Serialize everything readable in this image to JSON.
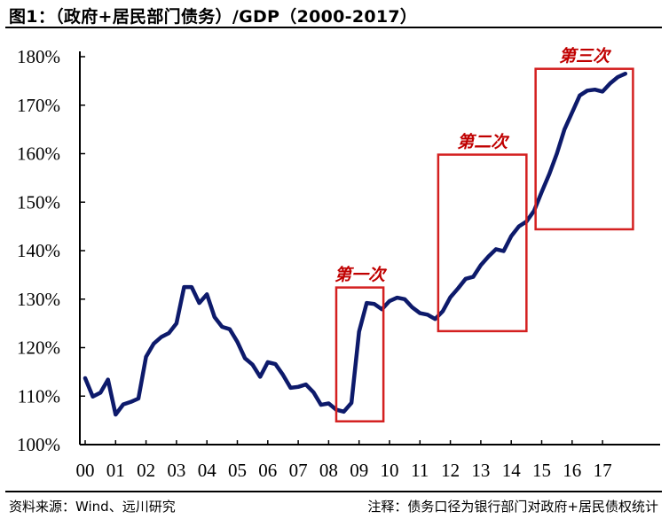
{
  "header": {
    "title": "图1：（政府+居民部门债务）/GDP（2000-2017）"
  },
  "footer": {
    "source": "资料来源：Wind、远川研究",
    "note": "注释：债务口径为银行部门对政府+居民债权统计"
  },
  "colors": {
    "line": "#0d1a6b",
    "highlight_box": "#d42020",
    "annotation_text": "#c00000"
  },
  "chart_data": {
    "type": "line",
    "title": "（政府+居民部门债务）/GDP（2000-2017）",
    "xlabel": "",
    "ylabel": "",
    "ylim": [
      100,
      180
    ],
    "xlim": [
      0,
      17.75
    ],
    "grid": false,
    "y_ticks": [
      100,
      110,
      120,
      130,
      140,
      150,
      160,
      170,
      180
    ],
    "y_tick_labels": [
      "100%",
      "110%",
      "120%",
      "130%",
      "140%",
      "150%",
      "160%",
      "170%",
      "180%"
    ],
    "x_ticks": [
      0,
      1,
      2,
      3,
      4,
      5,
      6,
      7,
      8,
      9,
      10,
      11,
      12,
      13,
      14,
      15,
      16,
      17
    ],
    "x_tick_labels": [
      "00",
      "01",
      "02",
      "03",
      "04",
      "05",
      "06",
      "07",
      "08",
      "09",
      "10",
      "11",
      "12",
      "13",
      "14",
      "15",
      "16",
      "17"
    ],
    "series": [
      {
        "x": [
          0.0,
          0.25,
          0.5,
          0.75,
          1.0,
          1.25,
          1.5,
          1.75,
          2.0,
          2.25,
          2.5,
          2.75,
          3.0,
          3.25,
          3.5,
          3.75,
          4.0,
          4.25,
          4.5,
          4.75,
          5.0,
          5.25,
          5.5,
          5.75,
          6.0,
          6.25,
          6.5,
          6.75,
          7.0,
          7.25,
          7.5,
          7.75,
          8.0,
          8.25,
          8.5,
          8.75,
          9.0,
          9.25,
          9.5,
          9.75,
          10.0,
          10.25,
          10.5,
          10.75,
          11.0,
          11.25,
          11.5,
          11.75,
          12.0,
          12.25,
          12.5,
          12.75,
          13.0,
          13.25,
          13.5,
          13.75,
          14.0,
          14.25,
          14.5,
          14.75,
          15.0,
          15.25,
          15.5,
          15.75,
          16.0,
          16.25,
          16.5,
          16.75,
          17.0,
          17.25,
          17.5,
          17.75
        ],
        "values": [
          113.7,
          109.9,
          110.7,
          113.4,
          106.2,
          108.3,
          108.8,
          109.5,
          118.1,
          120.8,
          122.2,
          123.0,
          125.0,
          132.5,
          132.5,
          129.2,
          131.0,
          126.3,
          124.3,
          123.8,
          121.2,
          117.8,
          116.5,
          114.0,
          117.0,
          116.6,
          114.4,
          111.7,
          111.9,
          112.4,
          110.8,
          108.2,
          108.5,
          107.2,
          106.8,
          108.6,
          123.3,
          129.2,
          129.0,
          127.9,
          129.6,
          130.3,
          130.0,
          128.3,
          127.1,
          126.8,
          125.9,
          127.5,
          130.4,
          132.2,
          134.2,
          134.6,
          137.0,
          138.8,
          140.3,
          139.9,
          143.0,
          145.0,
          146.0,
          148.2,
          152.1,
          155.8,
          160.0,
          165.0,
          168.5,
          172.0,
          173.0,
          173.2,
          172.8,
          174.5,
          175.8,
          176.5
        ]
      }
    ],
    "annotations": [
      {
        "label": "第一次",
        "x_range": [
          8.25,
          9.8
        ],
        "y_range": [
          104.8,
          132.4
        ]
      },
      {
        "label": "第二次",
        "x_range": [
          11.6,
          14.5
        ],
        "y_range": [
          123.4,
          159.8
        ]
      },
      {
        "label": "第三次",
        "x_range": [
          14.8,
          18.0
        ],
        "y_range": [
          144.4,
          177.5
        ]
      }
    ]
  }
}
